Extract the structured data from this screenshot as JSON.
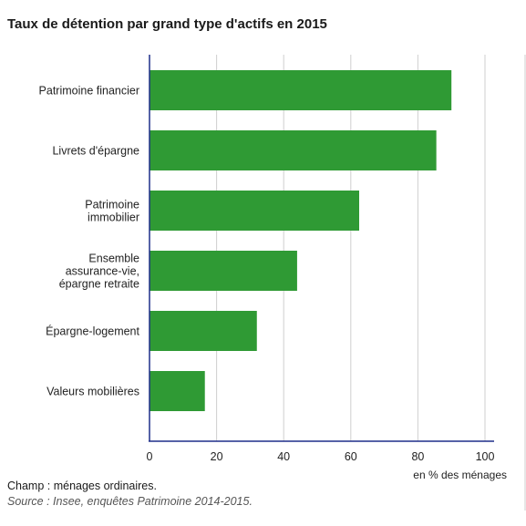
{
  "title": "Taux de détention par grand type d'actifs en 2015",
  "chart_data": {
    "type": "bar",
    "orientation": "horizontal",
    "title": "Taux de détention par grand type d'actifs en 2015",
    "categories": [
      [
        "Patrimoine financier"
      ],
      [
        "Livrets d'épargne"
      ],
      [
        "Patrimoine",
        "immobilier"
      ],
      [
        "Ensemble",
        "assurance-vie,",
        "épargne retraite"
      ],
      [
        "Épargne-logement"
      ],
      [
        "Valeurs mobilières"
      ]
    ],
    "values": [
      90,
      85.5,
      62.5,
      44,
      32,
      16.5
    ],
    "xlim": [
      0,
      100
    ],
    "xticks": [
      "0",
      "20",
      "40",
      "60",
      "80",
      "100"
    ],
    "xlabel": "en % des ménages",
    "ylabel": "",
    "grid": true,
    "bar_color": "#2f9a34",
    "axis_color": "#1f2f8a",
    "grid_color": "#cfcfcf"
  },
  "notes": {
    "champ": "Champ : ménages ordinaires.",
    "source": "Source : Insee, enquêtes Patrimoine 2014-2015."
  }
}
